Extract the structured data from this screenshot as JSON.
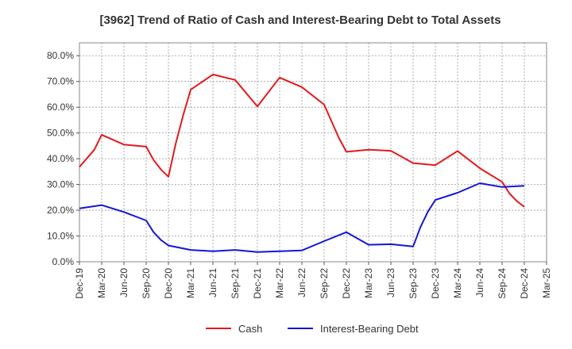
{
  "chart_data": {
    "type": "line",
    "title": "[3962]  Trend of Ratio of Cash and Interest-Bearing Debt to Total Assets",
    "xlabel": "",
    "ylabel": "",
    "ylim": [
      0,
      85
    ],
    "y_ticks": [
      "0.0%",
      "10.0%",
      "20.0%",
      "30.0%",
      "40.0%",
      "50.0%",
      "60.0%",
      "70.0%",
      "80.0%"
    ],
    "x_ticks": [
      "Dec-19",
      "Mar-20",
      "Jun-20",
      "Sep-20",
      "Dec-20",
      "Mar-21",
      "Jun-21",
      "Sep-21",
      "Dec-21",
      "Mar-22",
      "Jun-22",
      "Sep-22",
      "Dec-22",
      "Mar-23",
      "Jun-23",
      "Sep-23",
      "Dec-23",
      "Mar-24",
      "Jun-24",
      "Sep-24",
      "Dec-24",
      "Mar-25"
    ],
    "grid": true,
    "legend_position": "bottom",
    "series": [
      {
        "name": "Cash",
        "color": "#e31a1c",
        "points": [
          [
            "2019-12",
            36.8
          ],
          [
            "2020-02",
            43.5
          ],
          [
            "2020-03",
            49.3
          ],
          [
            "2020-06",
            45.5
          ],
          [
            "2020-09",
            44.7
          ],
          [
            "2020-10",
            39.5
          ],
          [
            "2020-11",
            35.8
          ],
          [
            "2020-12",
            33.0
          ],
          [
            "2021-01",
            46.0
          ],
          [
            "2021-02",
            57.0
          ],
          [
            "2021-03",
            66.8
          ],
          [
            "2021-06",
            72.7
          ],
          [
            "2021-09",
            70.6
          ],
          [
            "2021-12",
            60.3
          ],
          [
            "2022-03",
            71.5
          ],
          [
            "2022-06",
            67.8
          ],
          [
            "2022-09",
            61.0
          ],
          [
            "2022-10",
            54.5
          ],
          [
            "2022-11",
            48.0
          ],
          [
            "2022-12",
            42.7
          ],
          [
            "2023-03",
            43.5
          ],
          [
            "2023-06",
            43.1
          ],
          [
            "2023-09",
            38.3
          ],
          [
            "2023-12",
            37.5
          ],
          [
            "2024-03",
            43.0
          ],
          [
            "2024-06",
            36.3
          ],
          [
            "2024-09",
            31.0
          ],
          [
            "2024-10",
            26.5
          ],
          [
            "2024-11",
            23.5
          ],
          [
            "2024-12",
            21.3
          ]
        ]
      },
      {
        "name": "Interest-Bearing Debt",
        "color": "#1515d8",
        "points": [
          [
            "2019-12",
            20.7
          ],
          [
            "2020-03",
            22.0
          ],
          [
            "2020-06",
            19.3
          ],
          [
            "2020-09",
            16.0
          ],
          [
            "2020-10",
            11.5
          ],
          [
            "2020-11",
            8.4
          ],
          [
            "2020-12",
            6.3
          ],
          [
            "2021-03",
            4.6
          ],
          [
            "2021-06",
            4.1
          ],
          [
            "2021-09",
            4.6
          ],
          [
            "2021-12",
            3.8
          ],
          [
            "2022-03",
            4.1
          ],
          [
            "2022-06",
            4.4
          ],
          [
            "2022-09",
            8.0
          ],
          [
            "2022-12",
            11.5
          ],
          [
            "2023-03",
            6.6
          ],
          [
            "2023-06",
            6.8
          ],
          [
            "2023-09",
            5.9
          ],
          [
            "2023-10",
            13.5
          ],
          [
            "2023-11",
            19.5
          ],
          [
            "2023-12",
            24.0
          ],
          [
            "2024-03",
            26.8
          ],
          [
            "2024-06",
            30.5
          ],
          [
            "2024-09",
            29.0
          ],
          [
            "2024-12",
            29.5
          ]
        ]
      }
    ]
  }
}
